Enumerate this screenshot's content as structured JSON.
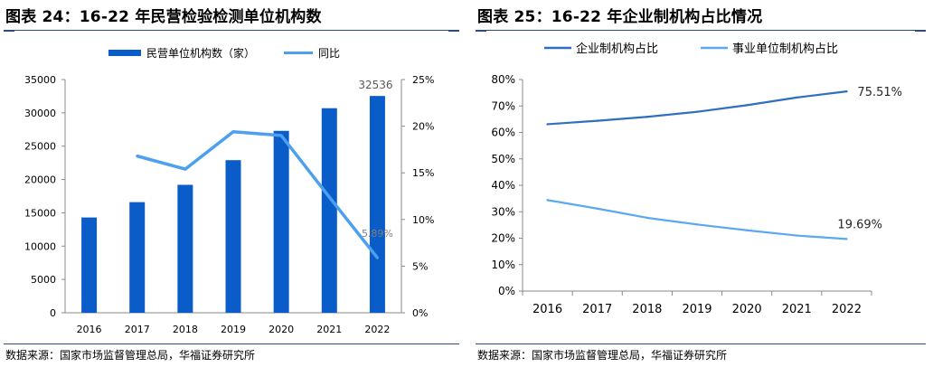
{
  "left": {
    "title": "图表 24：16-22 年民营检验检测单位机构数",
    "source": "数据来源：国家市场监督管理总局，华福证券研究所",
    "chart_data": {
      "type": "bar+line",
      "categories": [
        "2016",
        "2017",
        "2018",
        "2019",
        "2020",
        "2021",
        "2022"
      ],
      "series": [
        {
          "name": "民营单位机构数（家）",
          "type": "bar",
          "axis": "left",
          "color": "#0a5cc8",
          "values": [
            14300,
            16600,
            19200,
            22900,
            27300,
            30700,
            32536
          ]
        },
        {
          "name": "同比",
          "type": "line",
          "axis": "right",
          "color": "#4d9ff0",
          "values": [
            null,
            16.8,
            15.4,
            19.4,
            19.0,
            12.4,
            5.89
          ]
        }
      ],
      "y_left": {
        "ylim": [
          0,
          35000
        ],
        "ticks": [
          "0",
          "5000",
          "10000",
          "15000",
          "20000",
          "25000",
          "30000",
          "35000"
        ]
      },
      "y_right": {
        "ylim": [
          0,
          25
        ],
        "ticks": [
          "0%",
          "5%",
          "10%",
          "15%",
          "20%",
          "25%"
        ]
      },
      "annotations": [
        {
          "text": "32536",
          "category": "2022",
          "series": "bar"
        },
        {
          "text": "5.89%",
          "category": "2022",
          "series": "line"
        }
      ],
      "legend": "top-center"
    }
  },
  "right": {
    "title": "图表 25：16-22 年企业制机构占比情况",
    "source": "数据来源：国家市场监督管理总局，华福证券研究所",
    "chart_data": {
      "type": "line",
      "categories": [
        "2016",
        "2017",
        "2018",
        "2019",
        "2020",
        "2021",
        "2022"
      ],
      "series": [
        {
          "name": "企业制机构占比",
          "color": "#2e6fc0",
          "values": [
            63.1,
            64.4,
            65.9,
            67.8,
            70.3,
            73.2,
            75.51
          ]
        },
        {
          "name": "事业单位制机构占比",
          "color": "#5aa8ef",
          "values": [
            34.4,
            31.2,
            27.7,
            25.2,
            23.0,
            21.0,
            19.69
          ]
        }
      ],
      "y": {
        "ylim": [
          0,
          80
        ],
        "ticks": [
          "0%",
          "10%",
          "20%",
          "30%",
          "40%",
          "50%",
          "60%",
          "70%",
          "80%"
        ]
      },
      "annotations": [
        {
          "text": "75.51%",
          "category": "2022",
          "series": "企业制机构占比"
        },
        {
          "text": "19.69%",
          "category": "2022",
          "series": "事业单位制机构占比"
        }
      ],
      "legend": "top-left",
      "grid": false
    }
  }
}
